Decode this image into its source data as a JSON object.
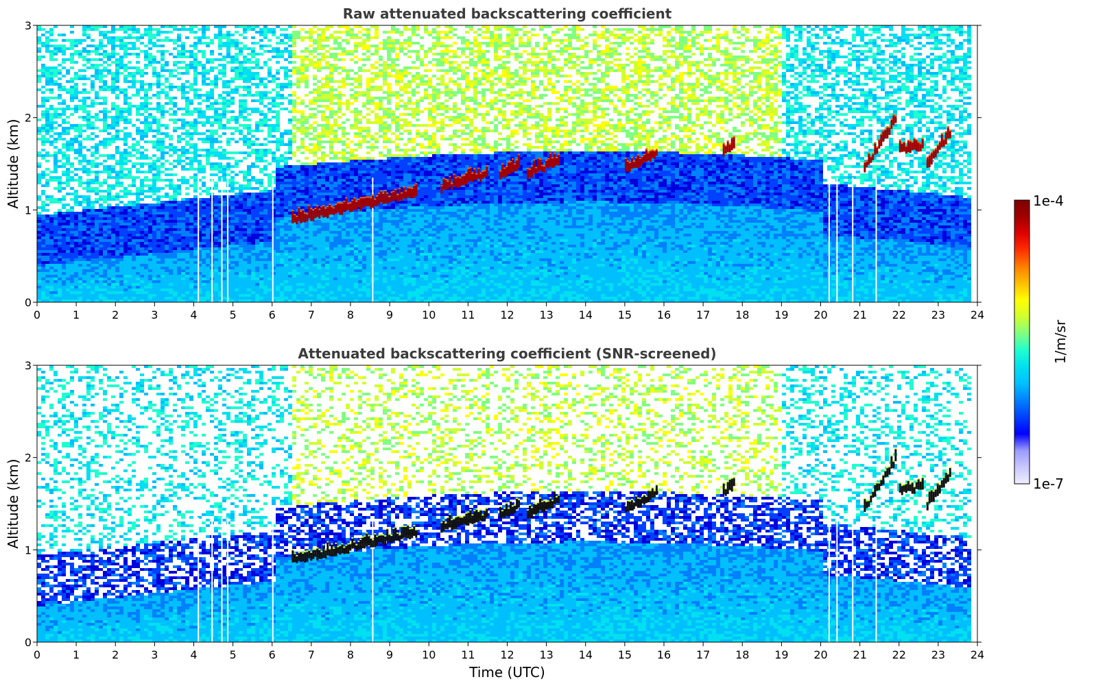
{
  "chart_data": [
    {
      "type": "heatmap",
      "title": "Raw attenuated backscattering coefficient",
      "xlabel": "",
      "ylabel": "Altitude (km)",
      "xlim": [
        0,
        24
      ],
      "ylim": [
        0,
        3
      ],
      "xticks": [
        "0",
        "1",
        "2",
        "3",
        "4",
        "5",
        "6",
        "7",
        "8",
        "9",
        "10",
        "11",
        "12",
        "13",
        "14",
        "15",
        "16",
        "17",
        "18",
        "19",
        "20",
        "21",
        "22",
        "23",
        "24"
      ],
      "yticks": [
        "0",
        "1",
        "2",
        "3"
      ],
      "colorscale": "jet (log)",
      "noise": "dense",
      "cloud_segments": [
        {
          "x": [
            6.5,
            9.7
          ],
          "y": [
            0.85,
            1.15
          ]
        },
        {
          "x": [
            10.3,
            11.5
          ],
          "y": [
            1.2,
            1.35
          ]
        },
        {
          "x": [
            11.8,
            12.3
          ],
          "y": [
            1.32,
            1.45
          ]
        },
        {
          "x": [
            12.5,
            13.3
          ],
          "y": [
            1.35,
            1.5
          ]
        },
        {
          "x": [
            15.0,
            15.8
          ],
          "y": [
            1.4,
            1.58
          ]
        },
        {
          "x": [
            17.5,
            17.8
          ],
          "y": [
            1.58,
            1.68
          ]
        },
        {
          "x": [
            21.1,
            21.9
          ],
          "y": [
            1.4,
            1.95
          ]
        },
        {
          "x": [
            22.0,
            22.6
          ],
          "y": [
            1.6,
            1.65
          ]
        },
        {
          "x": [
            22.7,
            23.3
          ],
          "y": [
            1.45,
            1.8
          ]
        }
      ],
      "dropout_times": [
        4.1,
        4.45,
        4.7,
        4.85,
        6.0,
        8.55,
        20.2,
        20.4,
        20.8,
        21.4
      ]
    },
    {
      "type": "heatmap",
      "title": "Attenuated backscattering coefficient (SNR-screened)",
      "xlabel": "Time (UTC)",
      "ylabel": "Altitude (km)",
      "xlim": [
        0,
        24
      ],
      "ylim": [
        0,
        3
      ],
      "xticks": [
        "0",
        "1",
        "2",
        "3",
        "4",
        "5",
        "6",
        "7",
        "8",
        "9",
        "10",
        "11",
        "12",
        "13",
        "14",
        "15",
        "16",
        "17",
        "18",
        "19",
        "20",
        "21",
        "22",
        "23",
        "24"
      ],
      "yticks": [
        "0",
        "1",
        "2",
        "3"
      ],
      "colorscale": "jet (log)",
      "noise": "screened",
      "cloud_segments": [
        {
          "x": [
            6.5,
            9.7
          ],
          "y": [
            0.85,
            1.15
          ]
        },
        {
          "x": [
            10.3,
            11.5
          ],
          "y": [
            1.2,
            1.35
          ]
        },
        {
          "x": [
            11.8,
            12.3
          ],
          "y": [
            1.32,
            1.45
          ]
        },
        {
          "x": [
            12.5,
            13.3
          ],
          "y": [
            1.35,
            1.5
          ]
        },
        {
          "x": [
            15.0,
            15.8
          ],
          "y": [
            1.4,
            1.58
          ]
        },
        {
          "x": [
            17.5,
            17.8
          ],
          "y": [
            1.58,
            1.68
          ]
        },
        {
          "x": [
            21.1,
            21.9
          ],
          "y": [
            1.4,
            1.95
          ]
        },
        {
          "x": [
            22.0,
            22.6
          ],
          "y": [
            1.6,
            1.65
          ]
        },
        {
          "x": [
            22.7,
            23.3
          ],
          "y": [
            1.45,
            1.8
          ]
        }
      ],
      "dropout_times": [
        4.1,
        4.45,
        4.7,
        4.85,
        6.0,
        8.55,
        20.2,
        20.4,
        20.8,
        21.4
      ]
    }
  ],
  "colorbar": {
    "label": "1/m/sr",
    "max_label": "1e-4",
    "min_label": "1e-7",
    "colors": [
      "#eeeeff",
      "#c8c8ff",
      "#9a9aff",
      "#0000ff",
      "#0040ff",
      "#0080ff",
      "#00bfff",
      "#00e0f0",
      "#20ffd0",
      "#80ff80",
      "#d0ff30",
      "#ffff00",
      "#ffc000",
      "#ff8000",
      "#ff3000",
      "#e00000",
      "#a00000",
      "#7f0000"
    ]
  }
}
